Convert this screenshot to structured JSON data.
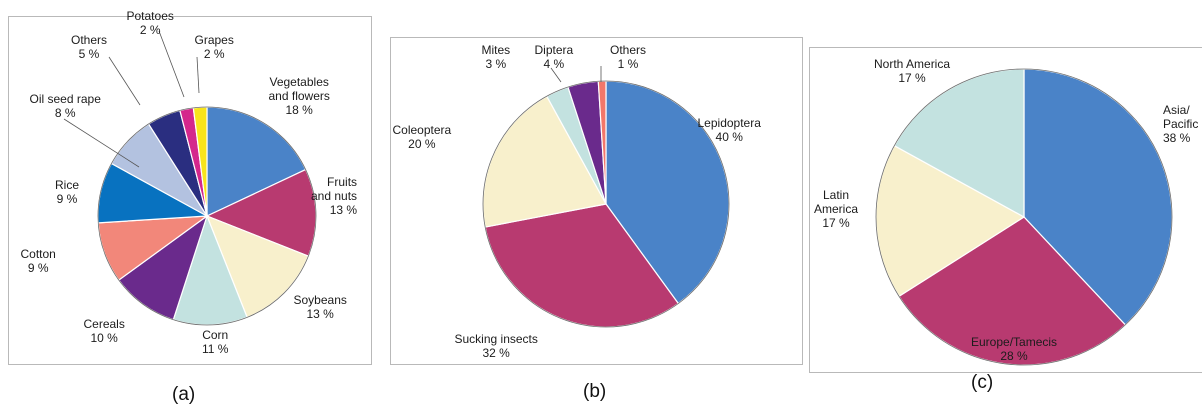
{
  "chart_data": [
    {
      "type": "pie",
      "caption": "(a)",
      "slices": [
        {
          "label": "Vegetables and flowers",
          "name_lines": [
            "Vegetables",
            "and flowers"
          ],
          "pct_text": "18 %",
          "value": 18,
          "color": "#4a83c8"
        },
        {
          "label": "Fruits and nuts",
          "name_lines": [
            "Fruits",
            "and nuts"
          ],
          "pct_text": "13 %",
          "value": 13,
          "color": "#b83a70"
        },
        {
          "label": "Soybeans",
          "name_lines": [
            "Soybeans"
          ],
          "pct_text": "13 %",
          "value": 13,
          "color": "#f8f0cc"
        },
        {
          "label": "Corn",
          "name_lines": [
            "Corn"
          ],
          "pct_text": "11 %",
          "value": 11,
          "color": "#c3e2e0"
        },
        {
          "label": "Cereals",
          "name_lines": [
            "Cereals"
          ],
          "pct_text": "10 %",
          "value": 10,
          "color": "#6a2a8c"
        },
        {
          "label": "Cotton",
          "name_lines": [
            "Cotton"
          ],
          "pct_text": "9 %",
          "value": 9,
          "color": "#f2877a"
        },
        {
          "label": "Rice",
          "name_lines": [
            "Rice"
          ],
          "pct_text": "9 %",
          "value": 9,
          "color": "#0872c0"
        },
        {
          "label": "Oil seed rape",
          "name_lines": [
            "Oil seed rape"
          ],
          "pct_text": "8 %",
          "value": 8,
          "color": "#b3c2e0"
        },
        {
          "label": "Others",
          "name_lines": [
            "Others"
          ],
          "pct_text": "5 %",
          "value": 5,
          "color": "#2a2e80"
        },
        {
          "label": "Potatoes",
          "name_lines": [
            "Potatoes"
          ],
          "pct_text": "2 %",
          "value": 2,
          "color": "#d4278c"
        },
        {
          "label": "Grapes",
          "name_lines": [
            "Grapes"
          ],
          "pct_text": "2 %",
          "value": 2,
          "color": "#f8e41c"
        }
      ]
    },
    {
      "type": "pie",
      "caption": "(b)",
      "slices": [
        {
          "label": "Lepidoptera",
          "name_lines": [
            "Lepidoptera"
          ],
          "pct_text": "40 %",
          "value": 40,
          "color": "#4a83c8"
        },
        {
          "label": "Sucking insects",
          "name_lines": [
            "Sucking insects"
          ],
          "pct_text": "32 %",
          "value": 32,
          "color": "#b83a70"
        },
        {
          "label": "Coleoptera",
          "name_lines": [
            "Coleoptera"
          ],
          "pct_text": "20 %",
          "value": 20,
          "color": "#f8f0cc"
        },
        {
          "label": "Mites",
          "name_lines": [
            "Mites"
          ],
          "pct_text": "3 %",
          "value": 3,
          "color": "#c3e2e0"
        },
        {
          "label": "Diptera",
          "name_lines": [
            "Diptera"
          ],
          "pct_text": "4 %",
          "value": 4,
          "color": "#6a2a8c"
        },
        {
          "label": "Others",
          "name_lines": [
            "Others"
          ],
          "pct_text": "1 %",
          "value": 1,
          "color": "#f2776a"
        }
      ]
    },
    {
      "type": "pie",
      "caption": "(c)",
      "slices": [
        {
          "label": "Asia/Pacific",
          "name_lines": [
            "Asia/",
            "Pacific"
          ],
          "pct_text": "38 %",
          "value": 38,
          "color": "#4a83c8"
        },
        {
          "label": "Europe/Tamecis",
          "name_lines": [
            "Europe/Tamecis"
          ],
          "pct_text": "28 %",
          "value": 28,
          "color": "#b83a70"
        },
        {
          "label": "Latin America",
          "name_lines": [
            "Latin",
            "America"
          ],
          "pct_text": "17 %",
          "value": 17,
          "color": "#f8f0cc"
        },
        {
          "label": "North America",
          "name_lines": [
            "North America"
          ],
          "pct_text": "17 %",
          "value": 17,
          "color": "#c3e2e0"
        }
      ]
    }
  ]
}
